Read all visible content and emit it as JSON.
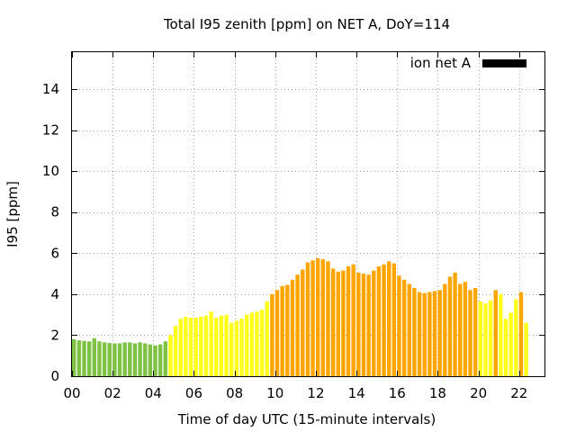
{
  "chart_data": {
    "type": "bar",
    "title": "Total I95 zenith [ppm] on NET A, DoY=114",
    "xlabel": "Time of day UTC (15-minute intervals)",
    "ylabel": "I95 [ppm]",
    "xlim": [
      0,
      23.25
    ],
    "ylim": [
      0,
      15.8
    ],
    "x_ticks": [
      "00",
      "02",
      "04",
      "06",
      "08",
      "10",
      "12",
      "14",
      "16",
      "18",
      "20",
      "22"
    ],
    "y_ticks": [
      "0",
      "2",
      "4",
      "6",
      "8",
      "10",
      "12",
      "14"
    ],
    "grid": true,
    "legend": {
      "label": "ion net A",
      "position": "top-right",
      "color": "#000000"
    },
    "interval_hours": 0.25,
    "colors": {
      "green": "#7dc242",
      "yellow": "#ffff1a",
      "orange": "#ffa500"
    },
    "values": [
      1.8,
      1.75,
      1.72,
      1.7,
      1.85,
      1.7,
      1.65,
      1.62,
      1.6,
      1.6,
      1.65,
      1.65,
      1.6,
      1.65,
      1.6,
      1.55,
      1.5,
      1.55,
      1.7,
      2.0,
      2.45,
      2.8,
      2.9,
      2.85,
      2.85,
      2.9,
      2.95,
      3.15,
      2.85,
      2.95,
      3.0,
      2.6,
      2.7,
      2.8,
      3.0,
      3.1,
      3.15,
      3.25,
      3.65,
      4.0,
      4.2,
      4.4,
      4.45,
      4.7,
      4.95,
      5.2,
      5.55,
      5.65,
      5.75,
      5.7,
      5.6,
      5.25,
      5.1,
      5.15,
      5.35,
      5.45,
      5.05,
      5.0,
      4.95,
      5.15,
      5.35,
      5.45,
      5.6,
      5.5,
      4.9,
      4.7,
      4.5,
      4.3,
      4.1,
      4.05,
      4.1,
      4.15,
      4.2,
      4.5,
      4.85,
      5.05,
      4.5,
      4.6,
      4.2,
      4.3,
      3.65,
      3.55,
      3.7,
      4.2,
      4.0,
      2.8,
      3.1,
      3.75,
      4.1,
      2.6
    ],
    "value_colors": [
      "green",
      "green",
      "green",
      "green",
      "green",
      "green",
      "green",
      "green",
      "green",
      "green",
      "green",
      "green",
      "green",
      "green",
      "green",
      "green",
      "green",
      "green",
      "green",
      "yellow",
      "yellow",
      "yellow",
      "yellow",
      "yellow",
      "yellow",
      "yellow",
      "yellow",
      "yellow",
      "yellow",
      "yellow",
      "yellow",
      "yellow",
      "yellow",
      "yellow",
      "yellow",
      "yellow",
      "yellow",
      "yellow",
      "yellow",
      "orange",
      "orange",
      "orange",
      "orange",
      "orange",
      "orange",
      "orange",
      "orange",
      "orange",
      "orange",
      "orange",
      "orange",
      "orange",
      "orange",
      "orange",
      "orange",
      "orange",
      "orange",
      "orange",
      "orange",
      "orange",
      "orange",
      "orange",
      "orange",
      "orange",
      "orange",
      "orange",
      "orange",
      "orange",
      "orange",
      "orange",
      "orange",
      "orange",
      "orange",
      "orange",
      "orange",
      "orange",
      "orange",
      "orange",
      "orange",
      "orange",
      "yellow",
      "yellow",
      "yellow",
      "orange",
      "yellow",
      "yellow",
      "yellow",
      "yellow",
      "orange",
      "yellow"
    ]
  }
}
